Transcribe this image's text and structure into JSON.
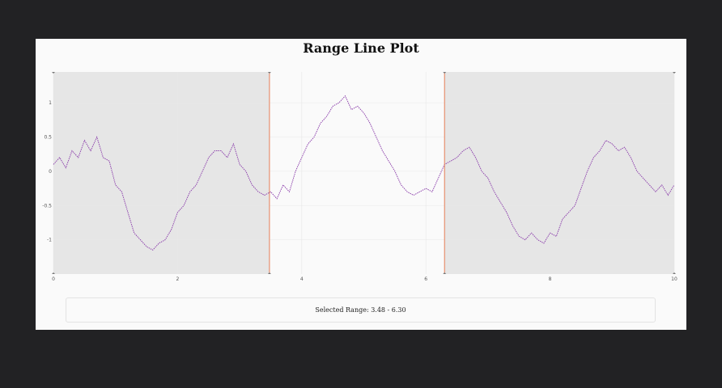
{
  "title": "Range Line Plot",
  "range_text": "Selected Range: 3.48 - 6.30",
  "colors": {
    "line": "#8e44ad",
    "handle": "#e67e57",
    "shade": "#e6e6e6",
    "plot_bg": "#fafafa",
    "grid": "#e8e8e8"
  },
  "chart_data": {
    "type": "line",
    "title": "Range Line Plot",
    "xlabel": "",
    "ylabel": "",
    "xlim": [
      0,
      10
    ],
    "ylim": [
      -1.5,
      1.45
    ],
    "x_ticks": [
      0,
      2,
      4,
      6,
      8,
      10
    ],
    "y_ticks": [
      1,
      0.5,
      0,
      -0.5,
      -1
    ],
    "grid": true,
    "line_style": "dotted",
    "selected_range": [
      3.48,
      6.3
    ],
    "series": [
      {
        "x": [
          0,
          0.1,
          0.2,
          0.3,
          0.4,
          0.5,
          0.6,
          0.7,
          0.8,
          0.9,
          1.0,
          1.1,
          1.2,
          1.3,
          1.4,
          1.5,
          1.6,
          1.7,
          1.8,
          1.9,
          2.0,
          2.1,
          2.2,
          2.3,
          2.4,
          2.5,
          2.6,
          2.7,
          2.8,
          2.9,
          3.0,
          3.1,
          3.2,
          3.3,
          3.4,
          3.5,
          3.6,
          3.7,
          3.8,
          3.9,
          4.0,
          4.1,
          4.2,
          4.3,
          4.4,
          4.5,
          4.6,
          4.7,
          4.8,
          4.9,
          5.0,
          5.1,
          5.2,
          5.3,
          5.4,
          5.5,
          5.6,
          5.7,
          5.8,
          5.9,
          6.0,
          6.1,
          6.2,
          6.3,
          6.4,
          6.5,
          6.6,
          6.7,
          6.8,
          6.9,
          7.0,
          7.1,
          7.2,
          7.3,
          7.4,
          7.5,
          7.6,
          7.7,
          7.8,
          7.9,
          8.0,
          8.1,
          8.2,
          8.3,
          8.4,
          8.5,
          8.6,
          8.7,
          8.8,
          8.9,
          9.0,
          9.1,
          9.2,
          9.3,
          9.4,
          9.5,
          9.6,
          9.7,
          9.8,
          9.9,
          10.0
        ],
        "values": [
          0.1,
          0.2,
          0.05,
          0.3,
          0.2,
          0.45,
          0.3,
          0.5,
          0.2,
          0.15,
          -0.2,
          -0.3,
          -0.6,
          -0.9,
          -1.0,
          -1.1,
          -1.15,
          -1.05,
          -1.0,
          -0.85,
          -0.6,
          -0.5,
          -0.3,
          -0.2,
          0.0,
          0.2,
          0.3,
          0.3,
          0.2,
          0.4,
          0.1,
          0.0,
          -0.2,
          -0.3,
          -0.35,
          -0.3,
          -0.4,
          -0.2,
          -0.3,
          0.0,
          0.2,
          0.4,
          0.5,
          0.7,
          0.8,
          0.95,
          1.0,
          1.1,
          0.9,
          0.95,
          0.85,
          0.7,
          0.5,
          0.3,
          0.15,
          0.0,
          -0.2,
          -0.3,
          -0.35,
          -0.3,
          -0.25,
          -0.3,
          -0.1,
          0.1,
          0.15,
          0.2,
          0.3,
          0.35,
          0.2,
          0.0,
          -0.1,
          -0.3,
          -0.45,
          -0.6,
          -0.8,
          -0.95,
          -1.0,
          -0.9,
          -1.0,
          -1.05,
          -0.9,
          -0.95,
          -0.7,
          -0.6,
          -0.5,
          -0.25,
          0.0,
          0.2,
          0.3,
          0.45,
          0.4,
          0.3,
          0.35,
          0.2,
          0.0,
          -0.1,
          -0.2,
          -0.3,
          -0.2,
          -0.35,
          -0.2
        ]
      }
    ]
  }
}
